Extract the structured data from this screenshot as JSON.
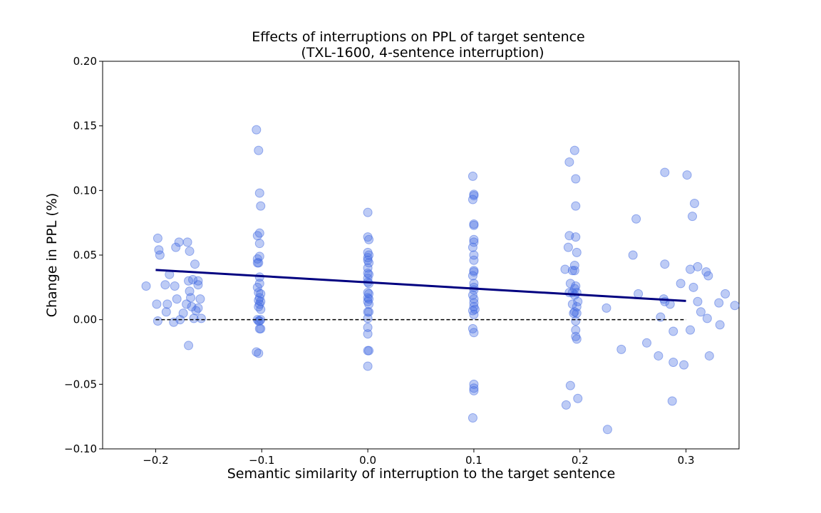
{
  "chart_data": {
    "type": "scatter",
    "title": "Effects of interruptions on PPL of target sentence",
    "subtitle": "(TXL-1600, 4-sentence interruption)",
    "xlabel": "Semantic similarity of interruption to the target sentence",
    "ylabel": "Change in PPL (%)",
    "xlim": [
      -0.25,
      0.35
    ],
    "ylim": [
      -0.1,
      0.2
    ],
    "xticks": [
      -0.2,
      -0.1,
      0.0,
      0.1,
      0.2,
      0.3
    ],
    "xtick_labels": [
      "−0.2",
      "−0.1",
      "0.0",
      "0.1",
      "0.2",
      "0.3"
    ],
    "yticks": [
      -0.1,
      -0.05,
      0.0,
      0.05,
      0.1,
      0.15,
      0.2
    ],
    "ytick_labels": [
      "−0.10",
      "−0.05",
      "0.00",
      "0.05",
      "0.10",
      "0.15",
      "0.20"
    ],
    "grid": false,
    "colors": {
      "points": "#4169e1",
      "fit_line": "#000080",
      "baseline": "#000000"
    },
    "fit_line": {
      "x": [
        -0.2,
        0.3
      ],
      "y": [
        0.0385,
        0.0145
      ]
    },
    "baseline": {
      "x": [
        -0.2,
        0.3
      ],
      "y": [
        0.0,
        0.0
      ]
    },
    "points": [
      [
        -0.209,
        0.026
      ],
      [
        -0.198,
        0.063
      ],
      [
        -0.197,
        0.054
      ],
      [
        -0.196,
        0.05
      ],
      [
        -0.199,
        0.012
      ],
      [
        -0.198,
        -0.001
      ],
      [
        -0.191,
        0.027
      ],
      [
        -0.19,
        0.006
      ],
      [
        -0.189,
        0.012
      ],
      [
        -0.187,
        0.035
      ],
      [
        -0.182,
        0.026
      ],
      [
        -0.181,
        0.056
      ],
      [
        -0.178,
        0.06
      ],
      [
        -0.18,
        0.016
      ],
      [
        -0.183,
        -0.002
      ],
      [
        -0.177,
        0.0
      ],
      [
        -0.174,
        0.005
      ],
      [
        -0.171,
        0.012
      ],
      [
        -0.17,
        0.06
      ],
      [
        -0.168,
        0.053
      ],
      [
        -0.169,
        0.03
      ],
      [
        -0.168,
        0.022
      ],
      [
        -0.167,
        0.017
      ],
      [
        -0.166,
        0.01
      ],
      [
        -0.169,
        -0.02
      ],
      [
        -0.165,
        0.031
      ],
      [
        -0.163,
        0.043
      ],
      [
        -0.162,
        0.007
      ],
      [
        -0.164,
        0.001
      ],
      [
        -0.16,
        0.03
      ],
      [
        -0.16,
        0.027
      ],
      [
        -0.16,
        0.009
      ],
      [
        -0.158,
        0.016
      ],
      [
        -0.157,
        0.001
      ],
      [
        -0.105,
        0.147
      ],
      [
        -0.103,
        0.131
      ],
      [
        -0.102,
        0.098
      ],
      [
        -0.101,
        0.088
      ],
      [
        -0.102,
        0.067
      ],
      [
        -0.104,
        0.065
      ],
      [
        -0.102,
        0.059
      ],
      [
        -0.102,
        0.049
      ],
      [
        -0.104,
        0.047
      ],
      [
        -0.104,
        0.044
      ],
      [
        -0.103,
        0.044
      ],
      [
        -0.102,
        0.033
      ],
      [
        -0.102,
        0.028
      ],
      [
        -0.104,
        0.025
      ],
      [
        -0.103,
        0.021
      ],
      [
        -0.101,
        0.02
      ],
      [
        -0.102,
        0.017
      ],
      [
        -0.103,
        0.015
      ],
      [
        -0.101,
        0.014
      ],
      [
        -0.102,
        0.012
      ],
      [
        -0.103,
        0.01
      ],
      [
        -0.101,
        0.008
      ],
      [
        -0.104,
        0.0
      ],
      [
        -0.103,
        -0.001
      ],
      [
        -0.102,
        -0.001
      ],
      [
        -0.101,
        0.0
      ],
      [
        -0.101,
        -0.007
      ],
      [
        -0.102,
        -0.007
      ],
      [
        -0.105,
        -0.025
      ],
      [
        -0.103,
        -0.026
      ],
      [
        0.0,
        0.083
      ],
      [
        0.0,
        0.064
      ],
      [
        0.001,
        0.062
      ],
      [
        0.0,
        0.052
      ],
      [
        0.001,
        0.05
      ],
      [
        0.0,
        0.048
      ],
      [
        0.0,
        0.046
      ],
      [
        0.001,
        0.044
      ],
      [
        0.0,
        0.04
      ],
      [
        0.0,
        0.036
      ],
      [
        0.001,
        0.035
      ],
      [
        0.0,
        0.032
      ],
      [
        0.0,
        0.029
      ],
      [
        0.001,
        0.028
      ],
      [
        0.0,
        0.021
      ],
      [
        0.001,
        0.02
      ],
      [
        0.0,
        0.017
      ],
      [
        0.001,
        0.016
      ],
      [
        0.0,
        0.014
      ],
      [
        0.001,
        0.012
      ],
      [
        0.0,
        0.006
      ],
      [
        0.001,
        0.006
      ],
      [
        0.0,
        0.001
      ],
      [
        0.0,
        -0.006
      ],
      [
        0.0,
        -0.011
      ],
      [
        0.0,
        -0.024
      ],
      [
        0.001,
        -0.024
      ],
      [
        0.0,
        -0.036
      ],
      [
        0.099,
        0.111
      ],
      [
        0.1,
        0.097
      ],
      [
        0.1,
        0.096
      ],
      [
        0.099,
        0.093
      ],
      [
        0.1,
        0.074
      ],
      [
        0.1,
        0.073
      ],
      [
        0.1,
        0.062
      ],
      [
        0.1,
        0.06
      ],
      [
        0.099,
        0.056
      ],
      [
        0.1,
        0.05
      ],
      [
        0.1,
        0.046
      ],
      [
        0.1,
        0.038
      ],
      [
        0.1,
        0.037
      ],
      [
        0.099,
        0.034
      ],
      [
        0.1,
        0.028
      ],
      [
        0.1,
        0.025
      ],
      [
        0.1,
        0.023
      ],
      [
        0.099,
        0.019
      ],
      [
        0.1,
        0.016
      ],
      [
        0.1,
        0.013
      ],
      [
        0.1,
        0.01
      ],
      [
        0.101,
        0.008
      ],
      [
        0.099,
        0.007
      ],
      [
        0.1,
        0.004
      ],
      [
        0.099,
        -0.007
      ],
      [
        0.1,
        -0.01
      ],
      [
        0.1,
        -0.05
      ],
      [
        0.1,
        -0.053
      ],
      [
        0.1,
        -0.055
      ],
      [
        0.099,
        -0.076
      ],
      [
        0.195,
        0.131
      ],
      [
        0.19,
        0.122
      ],
      [
        0.196,
        0.109
      ],
      [
        0.196,
        0.088
      ],
      [
        0.19,
        0.065
      ],
      [
        0.196,
        0.064
      ],
      [
        0.189,
        0.056
      ],
      [
        0.197,
        0.052
      ],
      [
        0.195,
        0.042
      ],
      [
        0.186,
        0.039
      ],
      [
        0.193,
        0.038
      ],
      [
        0.195,
        0.038
      ],
      [
        0.191,
        0.028
      ],
      [
        0.196,
        0.026
      ],
      [
        0.195,
        0.024
      ],
      [
        0.193,
        0.021
      ],
      [
        0.197,
        0.021
      ],
      [
        0.19,
        0.021
      ],
      [
        0.195,
        0.019
      ],
      [
        0.198,
        0.014
      ],
      [
        0.193,
        0.012
      ],
      [
        0.197,
        0.01
      ],
      [
        0.195,
        0.006
      ],
      [
        0.197,
        0.005
      ],
      [
        0.194,
        0.005
      ],
      [
        0.196,
        -0.001
      ],
      [
        0.196,
        -0.008
      ],
      [
        0.196,
        -0.013
      ],
      [
        0.197,
        -0.015
      ],
      [
        0.191,
        -0.051
      ],
      [
        0.198,
        -0.061
      ],
      [
        0.187,
        -0.066
      ],
      [
        0.225,
        0.009
      ],
      [
        0.226,
        -0.085
      ],
      [
        0.239,
        -0.023
      ],
      [
        0.25,
        0.05
      ],
      [
        0.253,
        0.078
      ],
      [
        0.255,
        0.02
      ],
      [
        0.263,
        -0.018
      ],
      [
        0.274,
        -0.028
      ],
      [
        0.276,
        0.002
      ],
      [
        0.279,
        0.016
      ],
      [
        0.28,
        0.114
      ],
      [
        0.28,
        0.043
      ],
      [
        0.28,
        0.014
      ],
      [
        0.285,
        0.012
      ],
      [
        0.288,
        -0.009
      ],
      [
        0.288,
        -0.033
      ],
      [
        0.287,
        -0.063
      ],
      [
        0.295,
        0.028
      ],
      [
        0.298,
        -0.035
      ],
      [
        0.301,
        0.112
      ],
      [
        0.304,
        -0.008
      ],
      [
        0.304,
        0.039
      ],
      [
        0.306,
        0.08
      ],
      [
        0.307,
        0.025
      ],
      [
        0.308,
        0.09
      ],
      [
        0.311,
        0.041
      ],
      [
        0.311,
        0.014
      ],
      [
        0.314,
        0.006
      ],
      [
        0.319,
        0.037
      ],
      [
        0.32,
        0.001
      ],
      [
        0.321,
        0.034
      ],
      [
        0.322,
        -0.028
      ],
      [
        0.331,
        0.013
      ],
      [
        0.332,
        -0.004
      ],
      [
        0.337,
        0.02
      ],
      [
        0.346,
        0.011
      ]
    ]
  }
}
